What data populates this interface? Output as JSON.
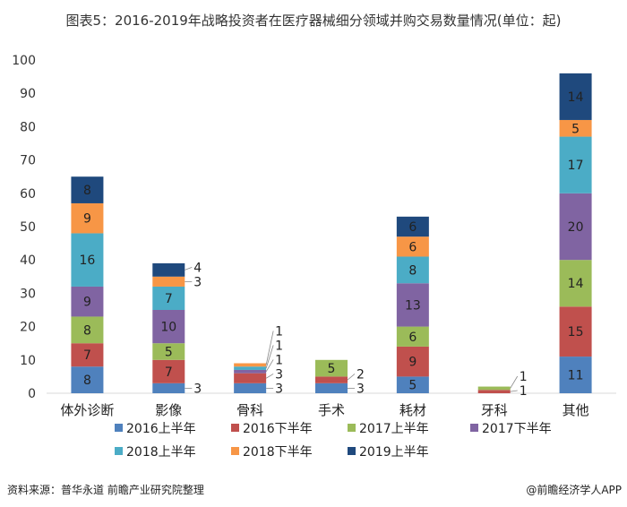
{
  "chart_data": {
    "type": "bar",
    "stacked": true,
    "title": "图表5：2016-2019年战略投资者在医疗器械细分领域并购交易数量情况(单位：起)",
    "categories": [
      "体外诊断",
      "影像",
      "骨科",
      "手术",
      "耗材",
      "牙科",
      "其他"
    ],
    "series": [
      {
        "name": "2016上半年",
        "color": "#4f81bd",
        "values": [
          8,
          3,
          3,
          3,
          5,
          0,
          11
        ]
      },
      {
        "name": "2016下半年",
        "color": "#c0504d",
        "values": [
          7,
          7,
          3,
          2,
          9,
          1,
          15
        ]
      },
      {
        "name": "2017上半年",
        "color": "#9bbb59",
        "values": [
          8,
          5,
          0,
          5,
          6,
          1,
          14
        ]
      },
      {
        "name": "2017下半年",
        "color": "#8064a2",
        "values": [
          9,
          10,
          1,
          0,
          13,
          0,
          20
        ]
      },
      {
        "name": "2018上半年",
        "color": "#4bacc6",
        "values": [
          16,
          7,
          1,
          0,
          8,
          0,
          17
        ]
      },
      {
        "name": "2018下半年",
        "color": "#f79646",
        "values": [
          9,
          3,
          1,
          0,
          6,
          0,
          5
        ]
      },
      {
        "name": "2019上半年",
        "color": "#1f497d",
        "values": [
          8,
          4,
          0,
          0,
          6,
          0,
          14
        ]
      }
    ],
    "ylim": [
      0,
      100
    ],
    "yticks": [
      0,
      10,
      20,
      30,
      40,
      50,
      60,
      70,
      80,
      90,
      100
    ],
    "grid": false,
    "legend": "bottom",
    "xlabel": "",
    "ylabel": ""
  },
  "footer": {
    "source": "资料来源：普华永道 前瞻产业研究院整理",
    "brand": "@前瞻经济学人APP"
  }
}
